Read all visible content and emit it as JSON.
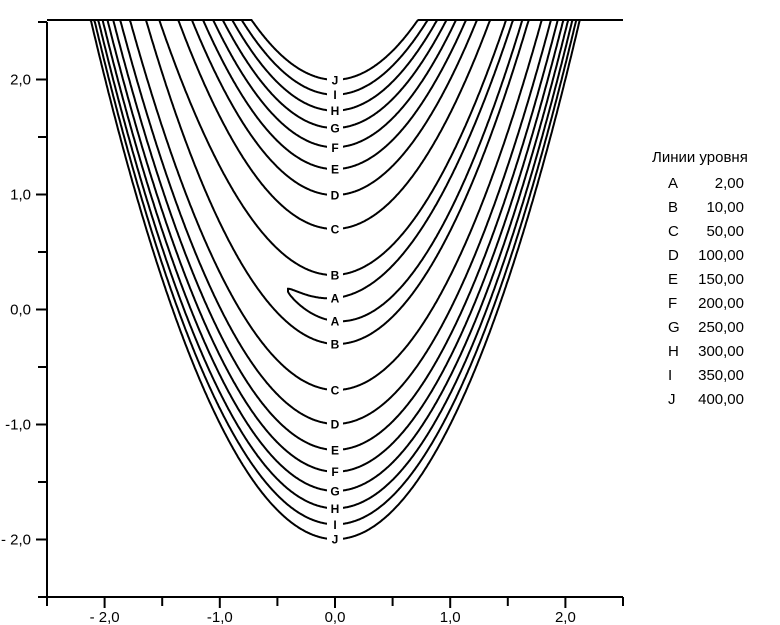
{
  "chart_data": {
    "type": "contour",
    "function": "rosenbrock",
    "xlim": [
      -2.5,
      2.5
    ],
    "ylim": [
      -2.5,
      2.5
    ],
    "x_ticks": [
      -2.0,
      -1.0,
      0.0,
      1.0,
      2.0
    ],
    "y_ticks": [
      -2.0,
      -1.0,
      0.0,
      1.0,
      2.0
    ],
    "x_tick_labels": [
      "- 2,0",
      "-1,0",
      "0,0",
      "1,0",
      "2,0"
    ],
    "y_tick_labels": [
      "- 2,0",
      "-1,0",
      "0,0",
      "1,0",
      "2,0"
    ],
    "grid": false,
    "legend": {
      "title": "Линии уровня",
      "position": "right",
      "entries": [
        {
          "key": "A",
          "level": 2,
          "label": "2,00"
        },
        {
          "key": "B",
          "level": 10,
          "label": "10,00"
        },
        {
          "key": "C",
          "level": 50,
          "label": "50,00"
        },
        {
          "key": "D",
          "level": 100,
          "label": "100,00"
        },
        {
          "key": "E",
          "level": 150,
          "label": "150,00"
        },
        {
          "key": "F",
          "level": 200,
          "label": "200,00"
        },
        {
          "key": "G",
          "level": 250,
          "label": "250,00"
        },
        {
          "key": "H",
          "level": 300,
          "label": "300,00"
        },
        {
          "key": "I",
          "level": 350,
          "label": "350,00"
        },
        {
          "key": "J",
          "level": 400,
          "label": "400,00"
        }
      ]
    }
  }
}
